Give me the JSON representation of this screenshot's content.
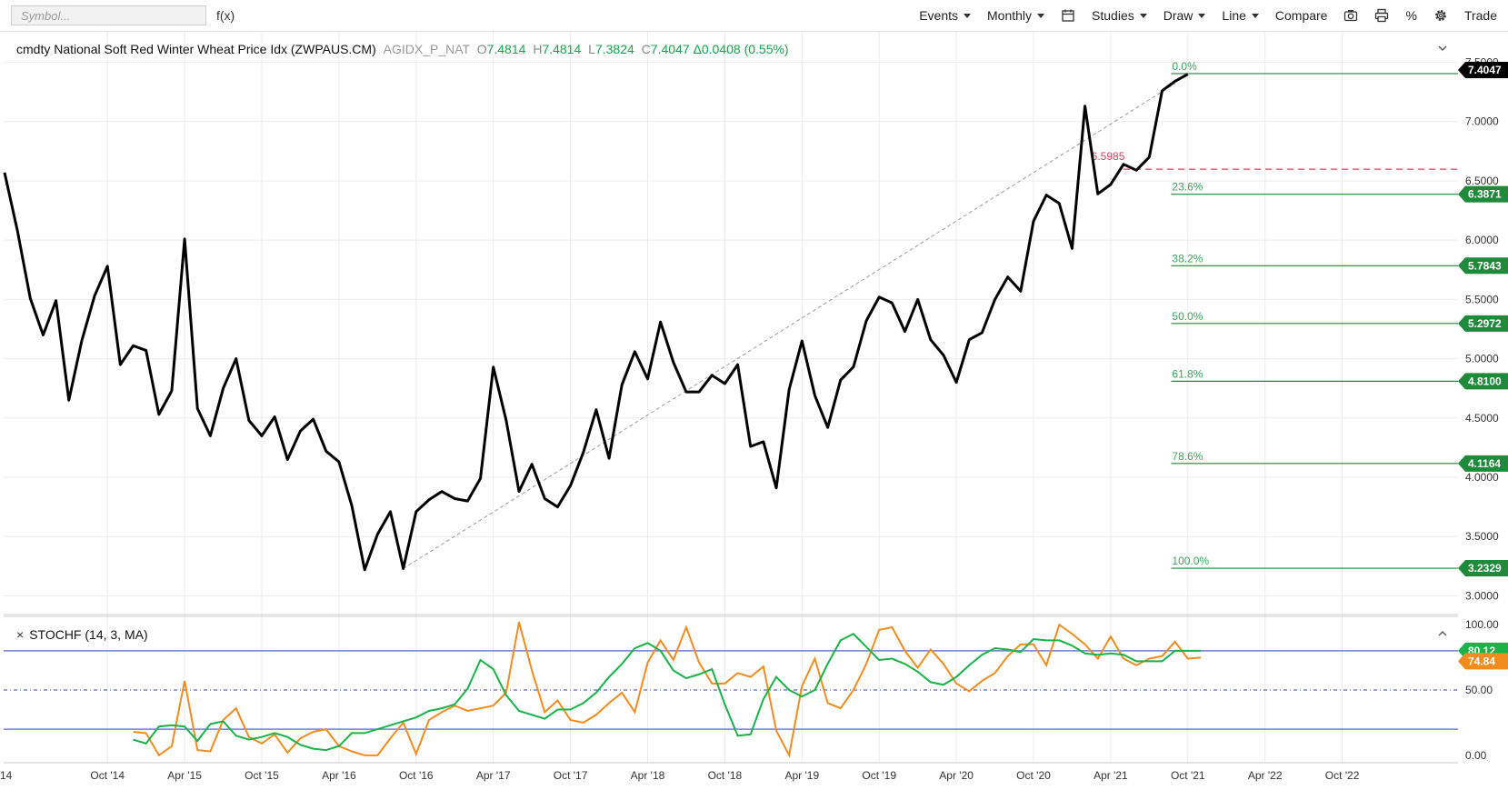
{
  "toolbar": {
    "symbol_placeholder": "Symbol...",
    "fx_label": "f(x)",
    "events_label": "Events",
    "period_label": "Monthly",
    "studies_label": "Studies",
    "draw_label": "Draw",
    "line_label": "Line",
    "compare_label": "Compare",
    "percent_label": "%",
    "trade_label": "Trade",
    "icons": [
      "calendar-icon",
      "camera-icon",
      "print-icon",
      "gear-icon",
      "chevron-down-icon",
      "chevron-up-icon",
      "close-icon"
    ]
  },
  "legend": {
    "name": "cmdty National Soft Red Winter Wheat Price Idx (ZWPAUS.CM)",
    "code": "AGIDX_P_NAT",
    "open_label": "O",
    "open": "7.4814",
    "high_label": "H",
    "high": "7.4814",
    "low_label": "L",
    "low": "7.3824",
    "close_label": "C",
    "close": "7.4047",
    "change": "Δ0.0408 (0.55%)"
  },
  "stoch_legend": {
    "close_symbol": "×",
    "label": "STOCHF (14, 3, MA)"
  },
  "colors": {
    "price_line": "#000000",
    "fib_green": "#1e8a3a",
    "fib_text": "#3aa85a",
    "stoch_k": "#f28c1f",
    "stoch_d": "#19b34a",
    "band_blue": "#6f7fd8",
    "hline_red": "#e0405a",
    "value_up": "#18a34a"
  },
  "chart_data": [
    {
      "type": "line",
      "title": "cmdty National Soft Red Winter Wheat Price Idx (ZWPAUS.CM)",
      "x_tick_labels": [
        "14",
        "Oct '14",
        "Apr '15",
        "Oct '15",
        "Apr '16",
        "Oct '16",
        "Apr '17",
        "Oct '17",
        "Apr '18",
        "Oct '18",
        "Apr '19",
        "Oct '19",
        "Apr '20",
        "Oct '20",
        "Apr '21",
        "Oct '21",
        "Apr '22",
        "Oct '22"
      ],
      "ylim": [
        2.85,
        7.55
      ],
      "y_ticks": [
        "3.0000",
        "3.5000",
        "4.0000",
        "4.5000",
        "5.0000",
        "5.5000",
        "6.0000",
        "6.5000",
        "7.0000",
        "7.5000"
      ],
      "grid": true,
      "series": [
        {
          "values": [
            6.57,
            6.08,
            5.51,
            5.2,
            5.49,
            4.65,
            5.15,
            5.53,
            5.78,
            4.95,
            5.11,
            5.07,
            4.53,
            4.73,
            6.01,
            4.58,
            4.35,
            4.75,
            5.0,
            4.48,
            4.35,
            4.51,
            4.15,
            4.39,
            4.49,
            4.22,
            4.13,
            3.76,
            3.22,
            3.52,
            3.71,
            3.23,
            3.71,
            3.81,
            3.88,
            3.82,
            3.8,
            3.99,
            4.93,
            4.48,
            3.88,
            4.11,
            3.82,
            3.75,
            3.93,
            4.21,
            4.57,
            4.16,
            4.78,
            5.06,
            4.83,
            5.31,
            4.97,
            4.72,
            4.72,
            4.86,
            4.79,
            4.95,
            4.26,
            4.3,
            3.91,
            4.74,
            5.15,
            4.69,
            4.42,
            4.82,
            4.93,
            5.32,
            5.52,
            5.47,
            5.23,
            5.5,
            5.16,
            5.03,
            4.8,
            5.16,
            5.22,
            5.5,
            5.69,
            5.57,
            6.16,
            6.38,
            6.31,
            5.93,
            7.13,
            6.39,
            6.47,
            6.64,
            6.59,
            6.7,
            7.26,
            7.34,
            7.4
          ]
        }
      ],
      "fib_levels": [
        {
          "pct": "0.0%",
          "value": 7.4047,
          "tag": "7.4047"
        },
        {
          "pct": "23.6%",
          "value": 6.3871,
          "tag": "6.3871"
        },
        {
          "pct": "38.2%",
          "value": 5.7843,
          "tag": "5.7843"
        },
        {
          "pct": "50.0%",
          "value": 5.2972,
          "tag": "5.2972"
        },
        {
          "pct": "61.8%",
          "value": 4.81,
          "tag": "4.8100"
        },
        {
          "pct": "78.6%",
          "value": 4.1164,
          "tag": "4.1164"
        },
        {
          "pct": "100.0%",
          "value": 3.2329,
          "tag": "3.2329"
        }
      ],
      "horizontal_line": {
        "label": "6.5985",
        "value": 6.5985
      },
      "trend_line": {
        "from_index": 31,
        "from_value": 3.23,
        "to_index": 91,
        "to_value": 7.32
      },
      "last_value_tag": "7.4047"
    },
    {
      "type": "line",
      "title": "STOCHF (14, 3, MA)",
      "ylim": [
        -5,
        105
      ],
      "y_ticks": [
        "0.00",
        "50.00",
        "100.00"
      ],
      "bands": [
        20,
        50,
        80
      ],
      "start_index": 10,
      "series": [
        {
          "name": "%K",
          "values": [
            18,
            17,
            0,
            7,
            57,
            4,
            3,
            27,
            36,
            14,
            9,
            16,
            2,
            13,
            18,
            20,
            7,
            3,
            0,
            0,
            13,
            25,
            1,
            27,
            33,
            38,
            34,
            36,
            38,
            48,
            102,
            65,
            33,
            42,
            27,
            25,
            31,
            40,
            48,
            33,
            71,
            88,
            73,
            98,
            71,
            55,
            55,
            63,
            60,
            68,
            19,
            0,
            53,
            74,
            40,
            36,
            50,
            70,
            96,
            98,
            80,
            67,
            81,
            70,
            55,
            49,
            57,
            63,
            76,
            85,
            85,
            69,
            100,
            93,
            85,
            74,
            91,
            74,
            69,
            74,
            76,
            87,
            74,
            74.84
          ]
        },
        {
          "name": "%D",
          "values": [
            12,
            9,
            22,
            23,
            22,
            11,
            24,
            26,
            15,
            12,
            14,
            17,
            14,
            8,
            5,
            4,
            7,
            17,
            17,
            20,
            23,
            26,
            29,
            34,
            36,
            39,
            51,
            73,
            66,
            46,
            34,
            31,
            28,
            35,
            35,
            40,
            48,
            60,
            70,
            82,
            86,
            80,
            65,
            59,
            62,
            66,
            39,
            15,
            16,
            43,
            60,
            50,
            45,
            50,
            70,
            88,
            93,
            83,
            73,
            74,
            70,
            64,
            56,
            54,
            60,
            69,
            77,
            82,
            81,
            79,
            89,
            88,
            88,
            84,
            78,
            77,
            78,
            77,
            72,
            72,
            72,
            80,
            80,
            80
          ]
        }
      ],
      "last_value_tags": [
        "80.12",
        "74.84"
      ]
    }
  ]
}
